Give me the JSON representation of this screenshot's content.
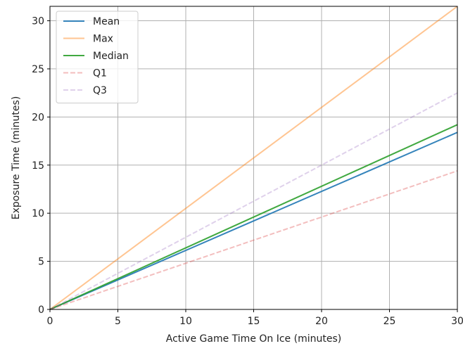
{
  "chart_data": {
    "type": "line",
    "xlabel": "Active Game Time On Ice (minutes)",
    "ylabel": "Exposure Time (minutes)",
    "xlim": [
      0,
      30
    ],
    "ylim": [
      0,
      31.5
    ],
    "xticks": [
      0,
      5,
      10,
      15,
      20,
      25,
      30
    ],
    "yticks": [
      0,
      5,
      10,
      15,
      20,
      25,
      30
    ],
    "grid": true,
    "legend_position": "top-left",
    "series": [
      {
        "name": "Mean",
        "color": "#1f77b4",
        "dash": "solid",
        "opacity": 0.9,
        "x": [
          0,
          30
        ],
        "y": [
          0,
          18.4
        ]
      },
      {
        "name": "Max",
        "color": "#ff7f0e",
        "dash": "solid",
        "opacity": 0.45,
        "x": [
          0,
          30
        ],
        "y": [
          0,
          31.5
        ]
      },
      {
        "name": "Median",
        "color": "#2ca02c",
        "dash": "solid",
        "opacity": 0.9,
        "x": [
          0,
          30
        ],
        "y": [
          0,
          19.2
        ]
      },
      {
        "name": "Q1",
        "color": "#d62728",
        "dash": "dashed",
        "opacity": 0.3,
        "x": [
          0,
          30
        ],
        "y": [
          0,
          14.4
        ]
      },
      {
        "name": "Q3",
        "color": "#9467bd",
        "dash": "dashed",
        "opacity": 0.3,
        "x": [
          0,
          30
        ],
        "y": [
          0,
          22.5
        ]
      }
    ]
  }
}
